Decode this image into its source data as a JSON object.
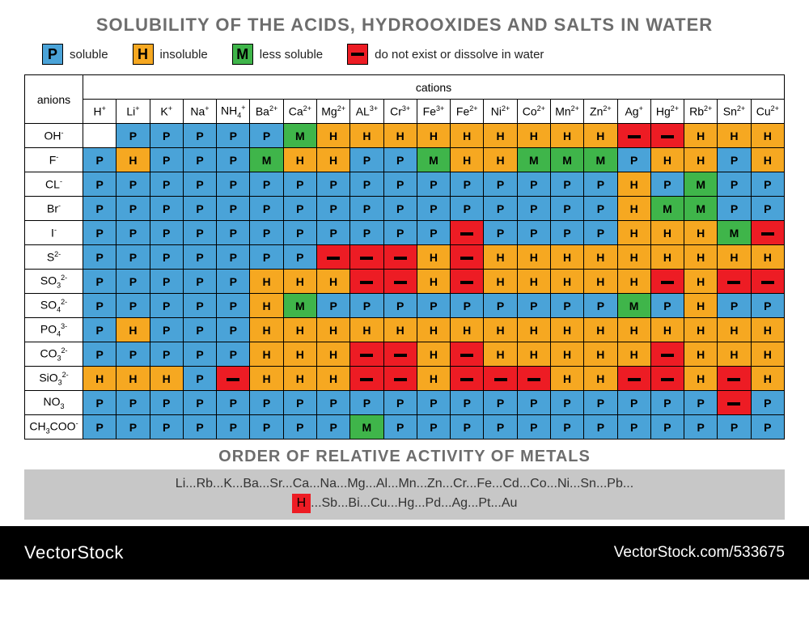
{
  "title": "SOLUBILITY OF THE ACIDS, HYDROOXIDES AND SALTS IN WATER",
  "colors": {
    "soluble": "#4aa3d8",
    "insoluble": "#f6a821",
    "less_soluble": "#3fb54a",
    "not_exist": "#ed1c24",
    "header_bg": "#ffffff",
    "title_color": "#6d6d6d",
    "activity_bg": "#c7c7c7",
    "footer_bg": "#000000",
    "footer_text": "#ffffff"
  },
  "legend": [
    {
      "symbol": "P",
      "label": "soluble",
      "color_key": "soluble"
    },
    {
      "symbol": "H",
      "label": "insoluble",
      "color_key": "insoluble"
    },
    {
      "symbol": "M",
      "label": "less soluble",
      "color_key": "less_soluble"
    },
    {
      "symbol": "—",
      "label": "do not exist or dissolve in water",
      "color_key": "not_exist"
    }
  ],
  "row_header": "anions",
  "col_group_header": "cations",
  "cations": [
    {
      "sym": "H",
      "chg": "+"
    },
    {
      "sym": "Li",
      "chg": "+"
    },
    {
      "sym": "K",
      "chg": "+"
    },
    {
      "sym": "Na",
      "chg": "+"
    },
    {
      "sym": "NH",
      "sub": "4",
      "chg": "+"
    },
    {
      "sym": "Ba",
      "chg": "2+"
    },
    {
      "sym": "Ca",
      "chg": "2+"
    },
    {
      "sym": "Mg",
      "chg": "2+"
    },
    {
      "sym": "AL",
      "chg": "3+"
    },
    {
      "sym": "Cr",
      "chg": "3+"
    },
    {
      "sym": "Fe",
      "chg": "3+"
    },
    {
      "sym": "Fe",
      "chg": "2+"
    },
    {
      "sym": "Ni",
      "chg": "2+"
    },
    {
      "sym": "Co",
      "chg": "2+"
    },
    {
      "sym": "Mn",
      "chg": "2+"
    },
    {
      "sym": "Zn",
      "chg": "2+"
    },
    {
      "sym": "Ag",
      "chg": "+"
    },
    {
      "sym": "Hg",
      "chg": "2+"
    },
    {
      "sym": "Rb",
      "chg": "2+"
    },
    {
      "sym": "Sn",
      "chg": "2+"
    },
    {
      "sym": "Cu",
      "chg": "2+"
    }
  ],
  "anions": [
    {
      "sym": "OH",
      "chg": "-"
    },
    {
      "sym": "F",
      "chg": "-"
    },
    {
      "sym": "CL",
      "chg": "-"
    },
    {
      "sym": "Br",
      "chg": "-"
    },
    {
      "sym": "I",
      "chg": "-"
    },
    {
      "sym": "S",
      "chg": "2-"
    },
    {
      "sym": "SO",
      "sub": "3",
      "chg": "2-"
    },
    {
      "sym": "SO",
      "sub": "4",
      "chg": "2-"
    },
    {
      "sym": "PO",
      "sub": "4",
      "chg": "3-"
    },
    {
      "sym": "CO",
      "sub": "3",
      "chg": "2-"
    },
    {
      "sym": "SiO",
      "sub": "3",
      "chg": "2-"
    },
    {
      "sym": "NO",
      "sub": "3",
      "chg": ""
    },
    {
      "sym": "CH",
      "sub": "3",
      "sym2": "COO",
      "chg": "-"
    }
  ],
  "grid": [
    [
      "",
      "P",
      "P",
      "P",
      "P",
      "P",
      "M",
      "H",
      "H",
      "H",
      "H",
      "H",
      "H",
      "H",
      "H",
      "H",
      "-",
      "-",
      "H",
      "H",
      "H"
    ],
    [
      "P",
      "H",
      "P",
      "P",
      "P",
      "M",
      "H",
      "H",
      "P",
      "P",
      "M",
      "H",
      "H",
      "M",
      "M",
      "M",
      "P",
      "H",
      "H",
      "P",
      "H"
    ],
    [
      "P",
      "P",
      "P",
      "P",
      "P",
      "P",
      "P",
      "P",
      "P",
      "P",
      "P",
      "P",
      "P",
      "P",
      "P",
      "P",
      "H",
      "P",
      "M",
      "P",
      "P"
    ],
    [
      "P",
      "P",
      "P",
      "P",
      "P",
      "P",
      "P",
      "P",
      "P",
      "P",
      "P",
      "P",
      "P",
      "P",
      "P",
      "P",
      "H",
      "M",
      "M",
      "P",
      "P"
    ],
    [
      "P",
      "P",
      "P",
      "P",
      "P",
      "P",
      "P",
      "P",
      "P",
      "P",
      "P",
      "-",
      "P",
      "P",
      "P",
      "P",
      "H",
      "H",
      "H",
      "M",
      "-"
    ],
    [
      "P",
      "P",
      "P",
      "P",
      "P",
      "P",
      "P",
      "-",
      "-",
      "-",
      "H",
      "-",
      "H",
      "H",
      "H",
      "H",
      "H",
      "H",
      "H",
      "H",
      "H"
    ],
    [
      "P",
      "P",
      "P",
      "P",
      "P",
      "H",
      "H",
      "H",
      "-",
      "-",
      "H",
      "-",
      "H",
      "H",
      "H",
      "H",
      "H",
      "-",
      "H",
      "-",
      "-"
    ],
    [
      "P",
      "P",
      "P",
      "P",
      "P",
      "H",
      "M",
      "P",
      "P",
      "P",
      "P",
      "P",
      "P",
      "P",
      "P",
      "P",
      "M",
      "P",
      "H",
      "P",
      "P"
    ],
    [
      "P",
      "H",
      "P",
      "P",
      "P",
      "H",
      "H",
      "H",
      "H",
      "H",
      "H",
      "H",
      "H",
      "H",
      "H",
      "H",
      "H",
      "H",
      "H",
      "H",
      "H"
    ],
    [
      "P",
      "P",
      "P",
      "P",
      "P",
      "H",
      "H",
      "H",
      "-",
      "-",
      "H",
      "-",
      "H",
      "H",
      "H",
      "H",
      "H",
      "-",
      "H",
      "H",
      "H"
    ],
    [
      "H",
      "H",
      "H",
      "P",
      "-",
      "H",
      "H",
      "H",
      "-",
      "-",
      "H",
      "-",
      "-",
      "-",
      "H",
      "H",
      "-",
      "-",
      "H",
      "-",
      "H"
    ],
    [
      "P",
      "P",
      "P",
      "P",
      "P",
      "P",
      "P",
      "P",
      "P",
      "P",
      "P",
      "P",
      "P",
      "P",
      "P",
      "P",
      "P",
      "P",
      "P",
      "-",
      "P"
    ],
    [
      "P",
      "P",
      "P",
      "P",
      "P",
      "P",
      "P",
      "P",
      "M",
      "P",
      "P",
      "P",
      "P",
      "P",
      "P",
      "P",
      "P",
      "P",
      "P",
      "P",
      "P"
    ]
  ],
  "order_title": "ORDER OF RELATIVE ACTIVITY OF METALS",
  "activity_line1": "Li...Rb...K...Ba...Sr...Ca...Na...Mg...Al...Mn...Zn...Cr...Fe...Cd...Co...Ni...Sn...Pb...",
  "activity_h": "H",
  "activity_line2": "...Sb...Bi...Cu...Hg...Pd...Ag...Pt...Au",
  "footer": {
    "brand": "VectorStock",
    "attribution": "VectorStock.com/533675"
  }
}
